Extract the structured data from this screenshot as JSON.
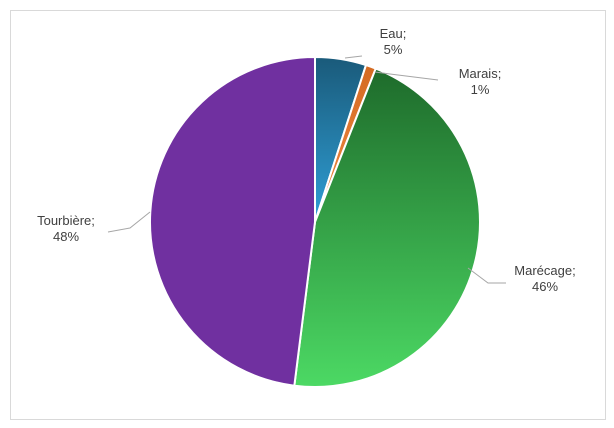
{
  "chart_data": {
    "type": "pie",
    "slices": [
      {
        "label": "Eau",
        "value": 5,
        "value_label": "5%",
        "colors": [
          "#2f9fd6",
          "#1a5a7a"
        ]
      },
      {
        "label": "Marais",
        "value": 1,
        "value_label": "1%",
        "colors": [
          "#f08a45",
          "#d46a22"
        ]
      },
      {
        "label": "Marécage",
        "value": 46,
        "value_label": "46%",
        "colors": [
          "#4cd964",
          "#1e6b2b"
        ]
      },
      {
        "label": "Tourbière",
        "value": 48,
        "value_label": "48%",
        "colors": [
          "#7030a0",
          "#7030a0"
        ]
      }
    ],
    "label_separator": ";",
    "legend": "none",
    "start_angle_deg": 0,
    "direction": "clockwise"
  }
}
